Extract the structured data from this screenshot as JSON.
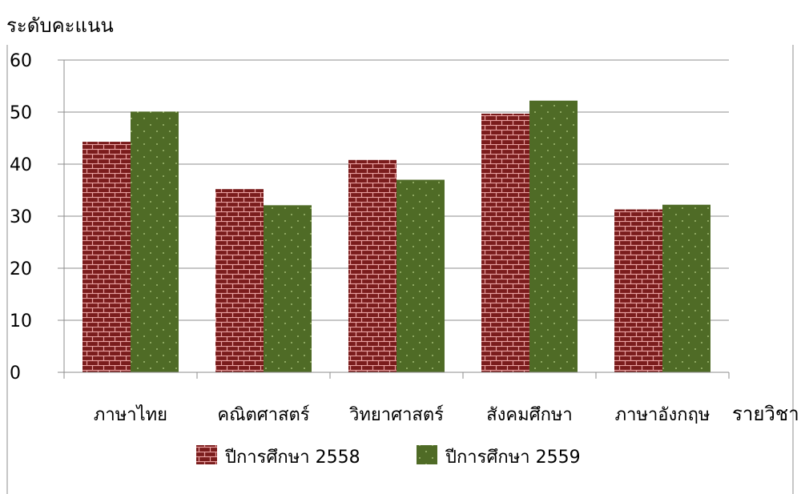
{
  "chart_data": {
    "type": "bar",
    "ylabel": "ระดับคะแนน",
    "xlabel": "รายวิชา",
    "ylim": [
      0,
      60
    ],
    "yticks": [
      0,
      10,
      20,
      30,
      40,
      50,
      60
    ],
    "grid": true,
    "legend_position": "bottom",
    "categories": [
      "ภาษาไทย",
      "คณิตศาสตร์",
      "วิทยาศาสตร์",
      "สังคมศึกษา",
      "ภาษาอังกฤษ"
    ],
    "series": [
      {
        "name": "ปีการศึกษา 2558",
        "values": [
          44.3,
          35.2,
          40.8,
          49.7,
          31.3
        ],
        "color": "#8B2E2E",
        "pattern": "brick"
      },
      {
        "name": "ปีการศึกษา 2559",
        "values": [
          50.1,
          32.1,
          37.0,
          52.2,
          32.2
        ],
        "color": "#556B2F",
        "pattern": "dots"
      }
    ]
  }
}
